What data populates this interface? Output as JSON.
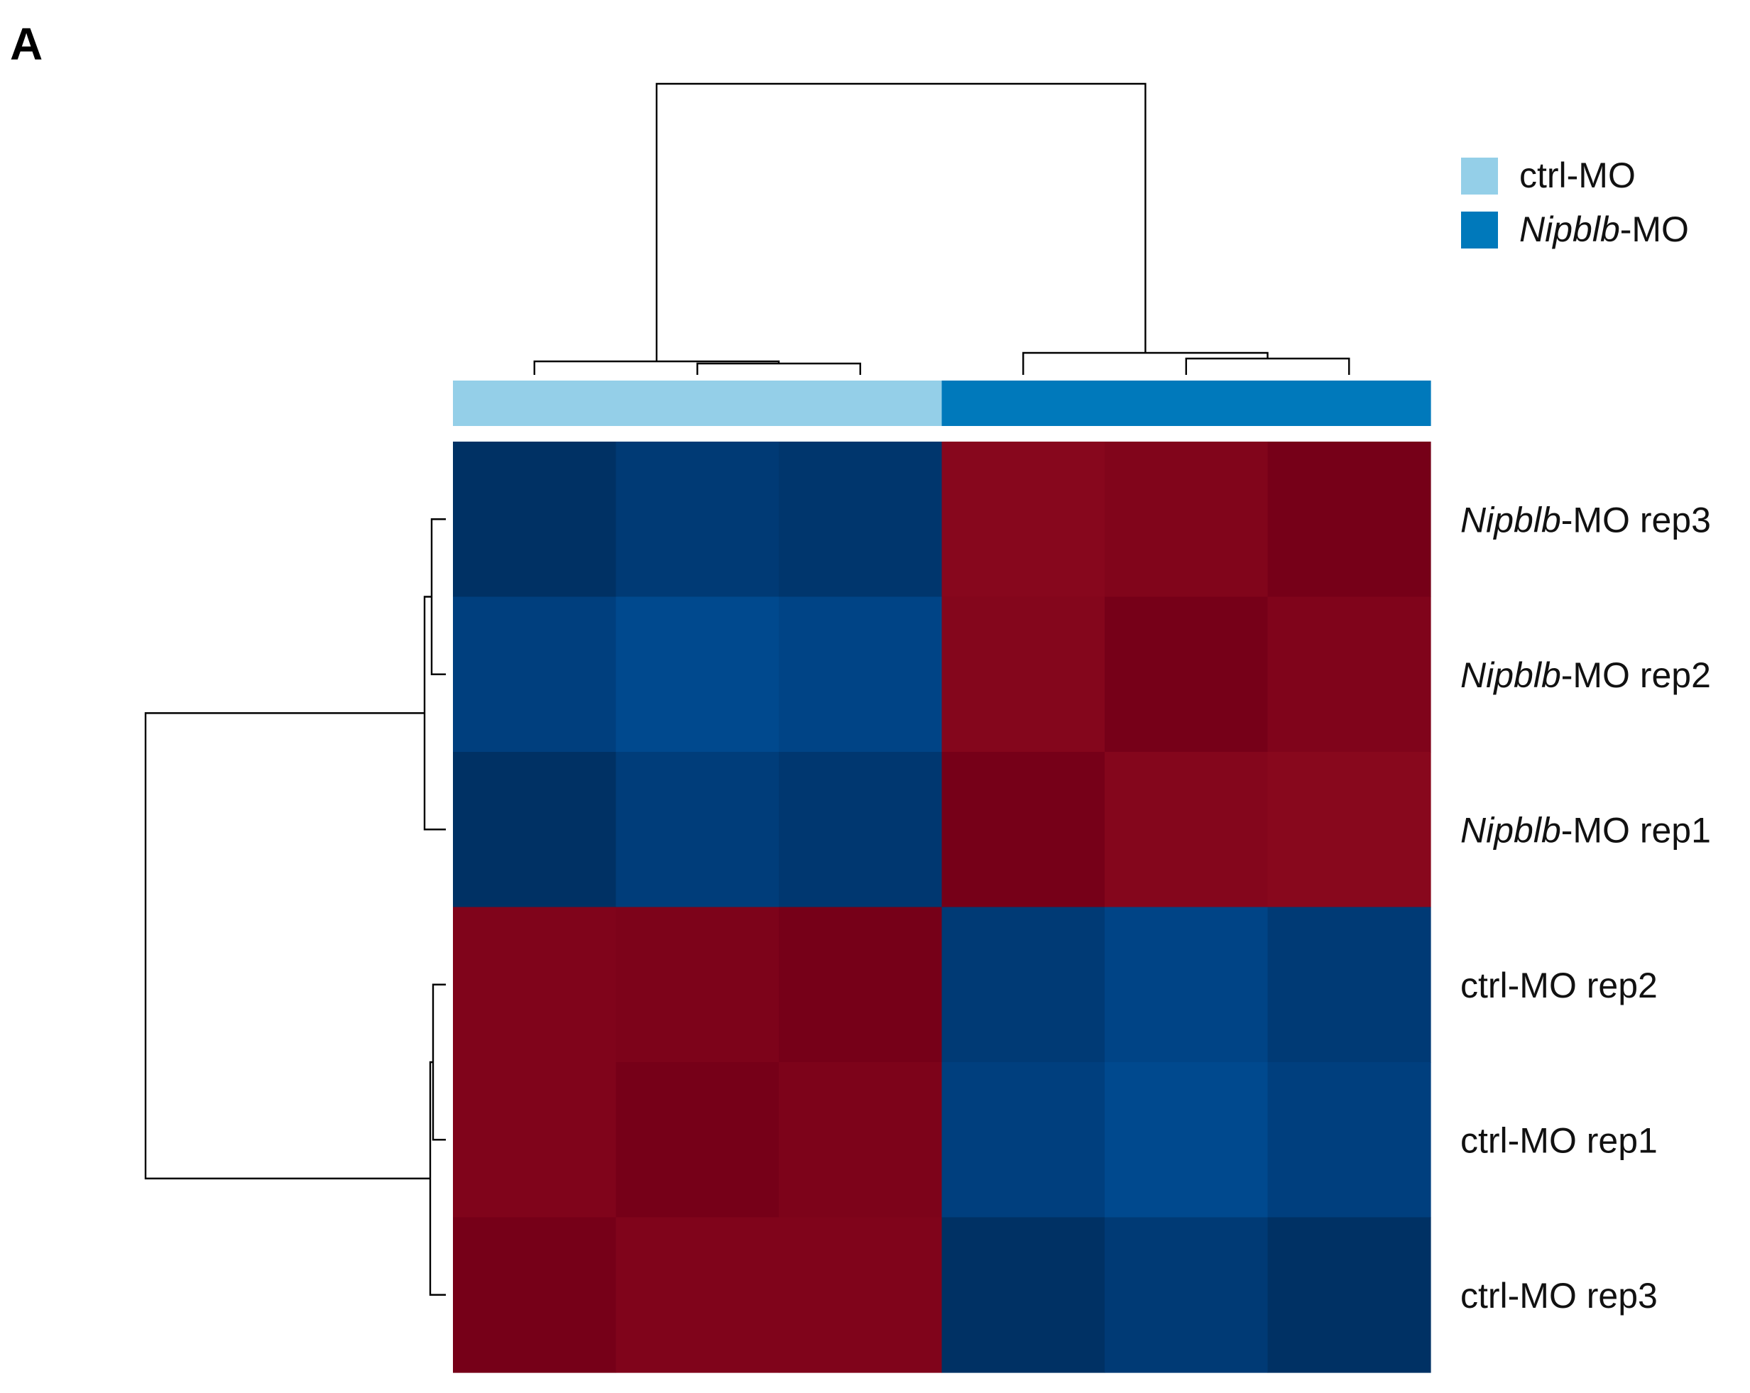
{
  "panel_label": "A",
  "chart_data": {
    "type": "heatmap",
    "title": "",
    "xlabel": "",
    "ylabel": "",
    "rows": [
      {
        "prefix": "Nipblb",
        "suffix": "-MO rep3"
      },
      {
        "prefix": "Nipblb",
        "suffix": "-MO rep2"
      },
      {
        "prefix": "Nipblb",
        "suffix": "-MO rep1"
      },
      {
        "prefix": "",
        "suffix": "ctrl-MO rep2"
      },
      {
        "prefix": "",
        "suffix": "ctrl-MO rep1"
      },
      {
        "prefix": "",
        "suffix": "ctrl-MO rep3"
      }
    ],
    "column_groups": [
      "ctrl-MO",
      "ctrl-MO",
      "ctrl-MO",
      "Nipblb-MO",
      "Nipblb-MO",
      "Nipblb-MO"
    ],
    "values": [
      [
        -0.95,
        -0.85,
        -0.9,
        0.88,
        0.92,
        1.0
      ],
      [
        -0.8,
        -0.7,
        -0.75,
        0.9,
        1.0,
        0.93
      ],
      [
        -0.95,
        -0.82,
        -0.88,
        1.0,
        0.9,
        0.87
      ],
      [
        0.93,
        0.95,
        1.0,
        -0.85,
        -0.75,
        -0.85
      ],
      [
        0.93,
        1.0,
        0.95,
        -0.8,
        -0.7,
        -0.8
      ],
      [
        1.0,
        0.93,
        0.93,
        -0.95,
        -0.85,
        -0.95
      ]
    ],
    "value_range": [
      -1,
      1
    ],
    "color_scale": {
      "low": "#002c5c",
      "mid_low": "#00498f",
      "mid_high": "#a01224",
      "high": "#760018"
    },
    "legend": {
      "position": "top-right",
      "entries": [
        {
          "prefix": "",
          "suffix": "ctrl-MO",
          "color": "#94cfe8"
        },
        {
          "prefix": "Nipblb",
          "suffix": "-MO",
          "color": "#0079bb"
        }
      ]
    },
    "column_dendrogram": true,
    "row_dendrogram": true
  }
}
